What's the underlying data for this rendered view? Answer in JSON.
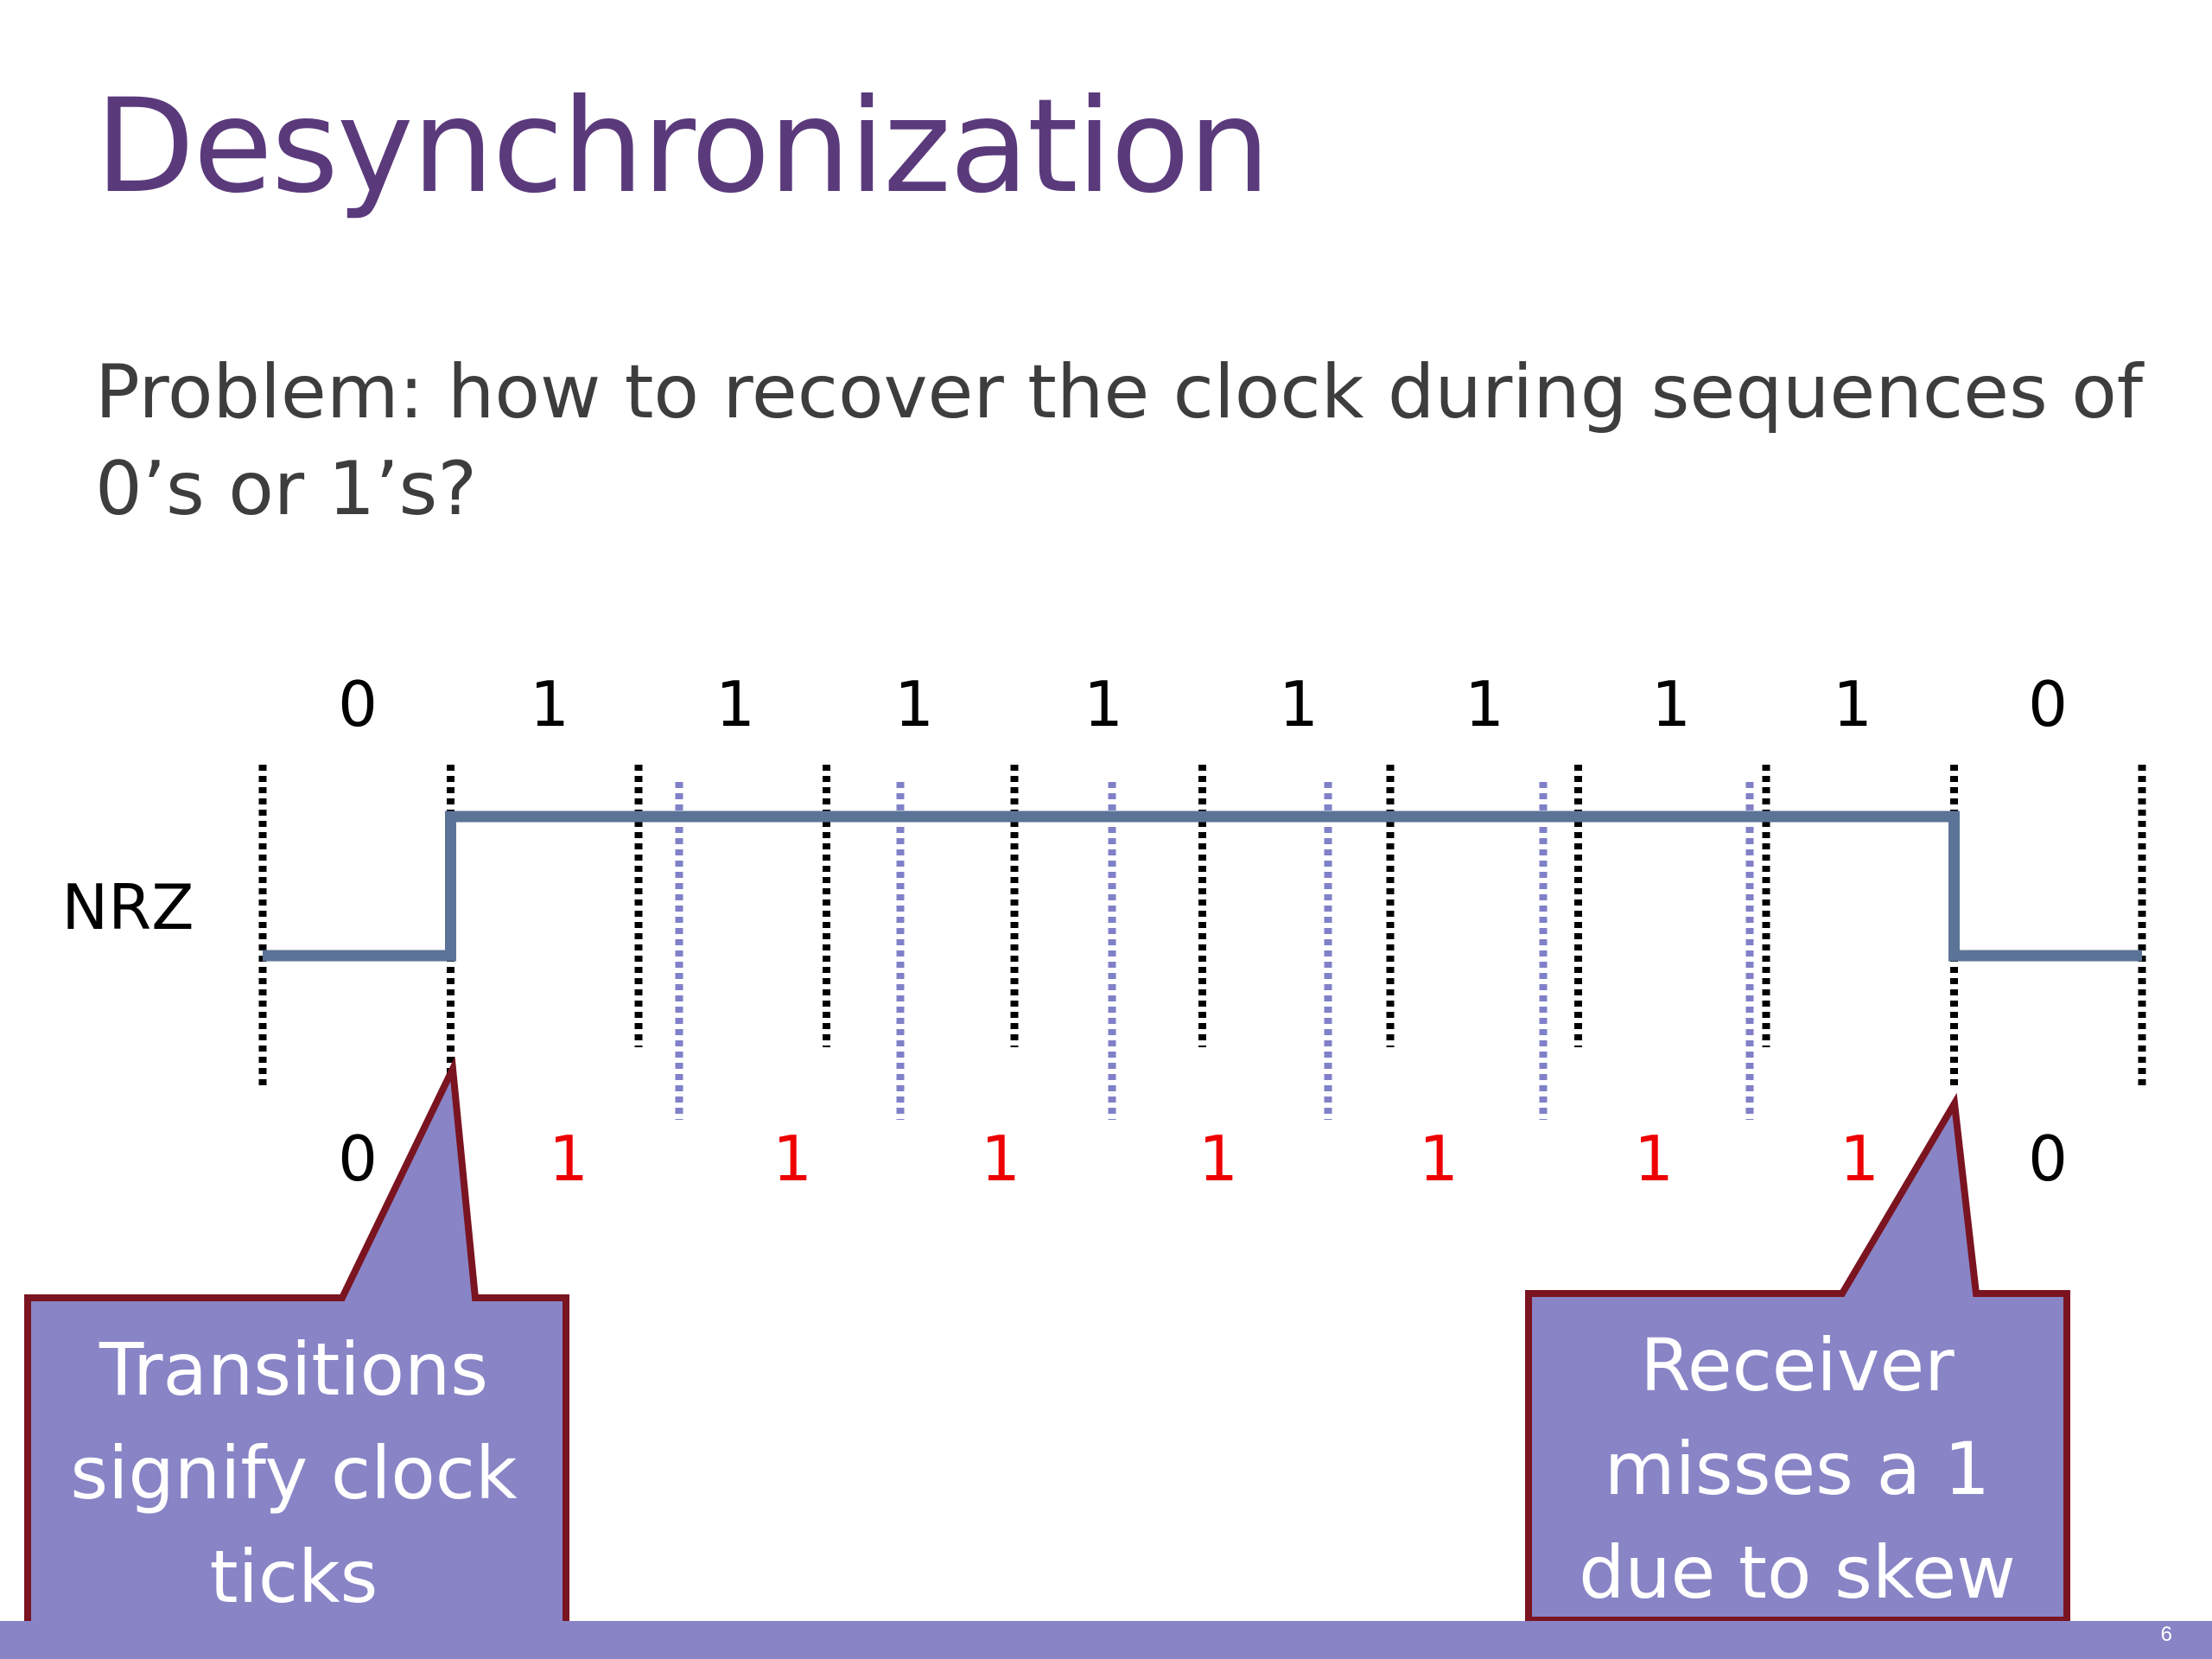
{
  "title": "Desynchronization",
  "problem": "Problem: how to recover the clock during sequences of 0’s or 1’s?",
  "diagram": {
    "signal_label": "NRZ",
    "sent_bits": [
      "0",
      "1",
      "1",
      "1",
      "1",
      "1",
      "1",
      "1",
      "1",
      "0"
    ],
    "received_bits": [
      {
        "text": "0",
        "color": "#000000"
      },
      {
        "text": "1",
        "color": "#ee0000"
      },
      {
        "text": "1",
        "color": "#ee0000"
      },
      {
        "text": "1",
        "color": "#ee0000"
      },
      {
        "text": "1",
        "color": "#ee0000"
      },
      {
        "text": "1",
        "color": "#ee0000"
      },
      {
        "text": "1",
        "color": "#ee0000"
      },
      {
        "text": "1",
        "color": "#ee0000"
      },
      {
        "text": "0",
        "color": "#000000"
      }
    ],
    "colors": {
      "signal": "#5b7396",
      "sender_clock": "#000000",
      "receiver_clock": "#8080c8",
      "callout_fill": "#8884c6",
      "callout_border": "#7a1420",
      "received_one": "#ee0000"
    }
  },
  "callouts": {
    "left": "Transitions signify clock ticks",
    "right": "Receiver misses a 1 due to skew"
  },
  "footer": {
    "slide_number": "6"
  }
}
